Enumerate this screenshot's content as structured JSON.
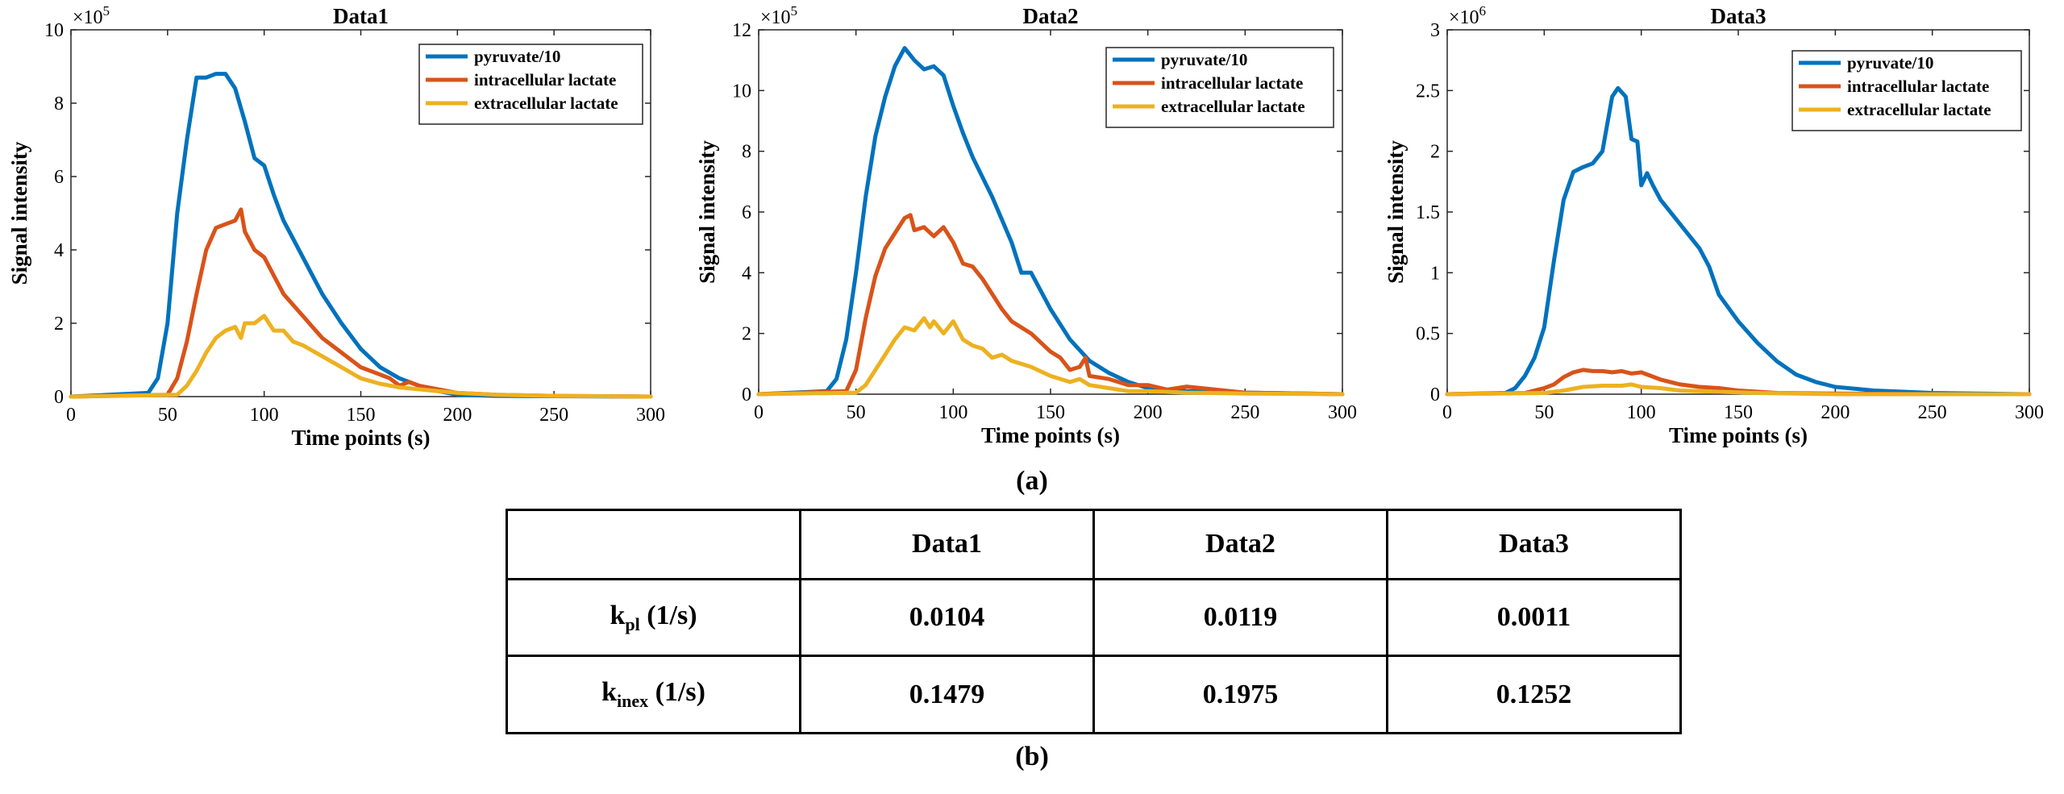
{
  "caption_a": "(a)",
  "caption_b": "(b)",
  "series_colors": {
    "pyruvate/10": "#0072BD",
    "intracellular lactate": "#D95319",
    "extracellular lactate": "#EDB120"
  },
  "chart_data": [
    {
      "type": "line",
      "title": "Data1",
      "xlabel": "Time points (s)",
      "ylabel": "Signal intensity",
      "exponent_label": "×10",
      "exponent_power": "5",
      "xlim": [
        0,
        300
      ],
      "ylim": [
        0,
        10
      ],
      "xticks": [
        0,
        50,
        100,
        150,
        200,
        250,
        300
      ],
      "yticks": [
        0,
        2,
        4,
        6,
        8,
        10
      ],
      "legend": "top-right",
      "series": [
        {
          "name": "pyruvate/10",
          "color": "#0072BD",
          "x": [
            0,
            40,
            45,
            50,
            55,
            60,
            65,
            70,
            75,
            80,
            85,
            90,
            95,
            100,
            105,
            110,
            120,
            130,
            140,
            150,
            160,
            170,
            180,
            190,
            200,
            220,
            250,
            300
          ],
          "y": [
            0,
            0.1,
            0.5,
            2.0,
            5.0,
            7.0,
            8.7,
            8.7,
            8.8,
            8.8,
            8.4,
            7.5,
            6.5,
            6.3,
            5.5,
            4.8,
            3.8,
            2.8,
            2.0,
            1.3,
            0.8,
            0.5,
            0.3,
            0.15,
            0.05,
            0.02,
            0.01,
            0
          ]
        },
        {
          "name": "intracellular lactate",
          "color": "#D95319",
          "x": [
            0,
            50,
            55,
            60,
            65,
            70,
            75,
            80,
            85,
            88,
            90,
            95,
            100,
            105,
            110,
            115,
            120,
            125,
            130,
            140,
            150,
            160,
            165,
            170,
            175,
            180,
            190,
            200,
            220,
            250,
            300
          ],
          "y": [
            0,
            0.05,
            0.5,
            1.5,
            2.8,
            4.0,
            4.6,
            4.7,
            4.8,
            5.1,
            4.5,
            4.0,
            3.8,
            3.3,
            2.8,
            2.5,
            2.2,
            1.9,
            1.6,
            1.2,
            0.8,
            0.6,
            0.5,
            0.3,
            0.4,
            0.3,
            0.2,
            0.1,
            0.05,
            0.02,
            0
          ]
        },
        {
          "name": "extracellular lactate",
          "color": "#EDB120",
          "x": [
            0,
            55,
            60,
            65,
            70,
            75,
            80,
            85,
            88,
            90,
            95,
            100,
            105,
            110,
            115,
            120,
            130,
            140,
            150,
            160,
            170,
            180,
            190,
            200,
            220,
            250,
            300
          ],
          "y": [
            0,
            0.05,
            0.3,
            0.7,
            1.2,
            1.6,
            1.8,
            1.9,
            1.6,
            2.0,
            2.0,
            2.2,
            1.8,
            1.8,
            1.5,
            1.4,
            1.1,
            0.8,
            0.5,
            0.35,
            0.25,
            0.2,
            0.15,
            0.1,
            0.05,
            0.02,
            0
          ]
        }
      ]
    },
    {
      "type": "line",
      "title": "Data2",
      "xlabel": "Time points (s)",
      "ylabel": "Signal intensity",
      "exponent_label": "×10",
      "exponent_power": "5",
      "xlim": [
        0,
        300
      ],
      "ylim": [
        0,
        12
      ],
      "xticks": [
        0,
        50,
        100,
        150,
        200,
        250,
        300
      ],
      "yticks": [
        0,
        2,
        4,
        6,
        8,
        10,
        12
      ],
      "legend": "top-right",
      "series": [
        {
          "name": "pyruvate/10",
          "color": "#0072BD",
          "x": [
            0,
            35,
            40,
            45,
            50,
            55,
            60,
            65,
            70,
            75,
            80,
            85,
            90,
            95,
            100,
            105,
            110,
            120,
            130,
            135,
            140,
            150,
            160,
            170,
            180,
            190,
            200,
            220,
            250,
            300
          ],
          "y": [
            0,
            0.1,
            0.5,
            1.8,
            4.0,
            6.5,
            8.5,
            9.8,
            10.8,
            11.4,
            11.0,
            10.7,
            10.8,
            10.5,
            9.5,
            8.6,
            7.8,
            6.5,
            5.0,
            4.0,
            4.0,
            2.8,
            1.8,
            1.1,
            0.7,
            0.4,
            0.2,
            0.1,
            0.05,
            0
          ]
        },
        {
          "name": "intracellular lactate",
          "color": "#D95319",
          "x": [
            0,
            45,
            50,
            55,
            60,
            65,
            70,
            75,
            78,
            80,
            85,
            90,
            95,
            100,
            105,
            110,
            115,
            120,
            125,
            130,
            140,
            150,
            155,
            160,
            165,
            168,
            170,
            180,
            190,
            200,
            210,
            220,
            250,
            300
          ],
          "y": [
            0,
            0.1,
            0.8,
            2.5,
            3.9,
            4.8,
            5.3,
            5.8,
            5.9,
            5.4,
            5.5,
            5.2,
            5.5,
            5.0,
            4.3,
            4.2,
            3.8,
            3.3,
            2.8,
            2.4,
            2.0,
            1.4,
            1.2,
            0.8,
            0.9,
            1.2,
            0.6,
            0.5,
            0.3,
            0.3,
            0.15,
            0.25,
            0.05,
            0
          ]
        },
        {
          "name": "extracellular lactate",
          "color": "#EDB120",
          "x": [
            0,
            50,
            55,
            60,
            65,
            70,
            75,
            80,
            85,
            88,
            90,
            95,
            100,
            105,
            110,
            115,
            120,
            125,
            130,
            140,
            150,
            160,
            165,
            170,
            180,
            190,
            200,
            220,
            250,
            300
          ],
          "y": [
            0,
            0.05,
            0.3,
            0.8,
            1.3,
            1.8,
            2.2,
            2.1,
            2.5,
            2.2,
            2.4,
            2.0,
            2.4,
            1.8,
            1.6,
            1.5,
            1.2,
            1.3,
            1.1,
            0.9,
            0.6,
            0.4,
            0.5,
            0.3,
            0.2,
            0.1,
            0.1,
            0.05,
            0.02,
            0
          ]
        }
      ]
    },
    {
      "type": "line",
      "title": "Data3",
      "xlabel": "Time points (s)",
      "ylabel": "Signal intensity",
      "exponent_label": "×10",
      "exponent_power": "6",
      "xlim": [
        0,
        300
      ],
      "ylim": [
        0,
        3
      ],
      "xticks": [
        0,
        50,
        100,
        150,
        200,
        250,
        300
      ],
      "yticks": [
        0,
        0.5,
        1,
        1.5,
        2,
        2.5,
        3
      ],
      "legend": "top-right",
      "series": [
        {
          "name": "pyruvate/10",
          "color": "#0072BD",
          "x": [
            0,
            30,
            35,
            40,
            45,
            50,
            55,
            60,
            65,
            70,
            75,
            80,
            85,
            88,
            92,
            95,
            98,
            100,
            103,
            106,
            110,
            120,
            130,
            135,
            140,
            150,
            160,
            170,
            180,
            190,
            200,
            220,
            250,
            300
          ],
          "y": [
            0,
            0.01,
            0.05,
            0.15,
            0.3,
            0.55,
            1.1,
            1.6,
            1.83,
            1.87,
            1.9,
            2.0,
            2.45,
            2.52,
            2.45,
            2.1,
            2.08,
            1.72,
            1.82,
            1.72,
            1.6,
            1.4,
            1.2,
            1.05,
            0.82,
            0.6,
            0.42,
            0.27,
            0.16,
            0.1,
            0.06,
            0.03,
            0.01,
            0
          ]
        },
        {
          "name": "intracellular lactate",
          "color": "#D95319",
          "x": [
            0,
            40,
            50,
            55,
            60,
            65,
            70,
            75,
            80,
            85,
            90,
            95,
            100,
            105,
            110,
            120,
            130,
            140,
            150,
            170,
            200,
            250,
            300
          ],
          "y": [
            0,
            0.01,
            0.05,
            0.08,
            0.14,
            0.18,
            0.2,
            0.19,
            0.19,
            0.18,
            0.19,
            0.17,
            0.18,
            0.15,
            0.12,
            0.08,
            0.06,
            0.05,
            0.03,
            0.01,
            0.005,
            0,
            0
          ]
        },
        {
          "name": "extracellular lactate",
          "color": "#EDB120",
          "x": [
            0,
            50,
            60,
            70,
            80,
            90,
            95,
            100,
            110,
            120,
            140,
            160,
            200,
            300
          ],
          "y": [
            0,
            0.01,
            0.03,
            0.06,
            0.07,
            0.07,
            0.08,
            0.06,
            0.05,
            0.03,
            0.02,
            0.01,
            0,
            0
          ]
        }
      ]
    }
  ],
  "table": {
    "columns": [
      "",
      "Data1",
      "Data2",
      "Data3"
    ],
    "rows": [
      {
        "label_main": "k",
        "label_sub": "pl",
        "label_unit": " (1/s)",
        "values": [
          "0.0104",
          "0.0119",
          "0.0011"
        ]
      },
      {
        "label_main": "k",
        "label_sub": "inex",
        "label_unit": " (1/s)",
        "values": [
          "0.1479",
          "0.1975",
          "0.1252"
        ]
      }
    ]
  }
}
